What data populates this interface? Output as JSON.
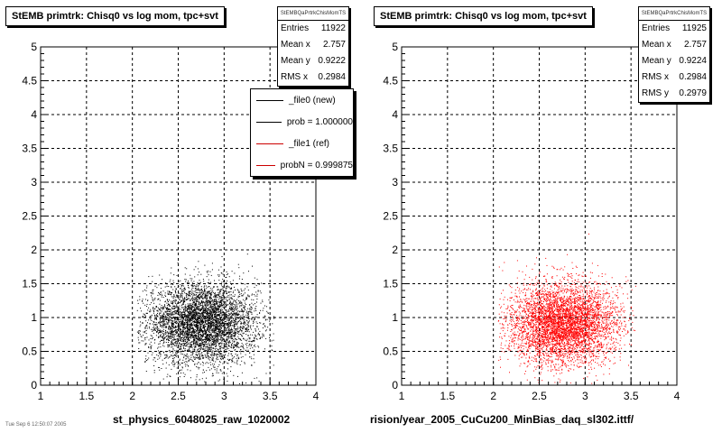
{
  "footnote": "Tue Sep 6 12:50:07 2005",
  "panels": [
    {
      "title": "StEMB primtrk: Chisq0 vs log mom, tpc+svt",
      "stats_name": "StEMBQaPrtrkChisMomTS",
      "stats": [
        {
          "label": "Entries",
          "value": "11922"
        },
        {
          "label": "Mean x",
          "value": "2.757"
        },
        {
          "label": "Mean y",
          "value": "0.9222"
        },
        {
          "label": "RMS x",
          "value": "0.2984"
        }
      ],
      "legend": [
        {
          "label": "_file0 (new)",
          "color": "#000000"
        },
        {
          "label": "prob = 1.000000",
          "color": "#000000"
        },
        {
          "label": "_file1 (ref)",
          "color": "#cc0000"
        },
        {
          "label": "probN = 0.999875",
          "color": "#cc0000"
        }
      ],
      "x_title": "st_physics_6048025_raw_1020002",
      "marker_color": "#000000"
    },
    {
      "title": "StEMB primtrk: Chisq0 vs log mom, tpc+svt",
      "stats_name": "StEMBQaPrtrkChisMomTS",
      "stats": [
        {
          "label": "Entries",
          "value": "11925"
        },
        {
          "label": "Mean x",
          "value": "2.757"
        },
        {
          "label": "Mean y",
          "value": "0.9224"
        },
        {
          "label": "RMS x",
          "value": "0.2984"
        },
        {
          "label": "RMS y",
          "value": "0.2979"
        }
      ],
      "legend": [],
      "x_title": "rision/year_2005_CuCu200_MinBias_daq_sl302.ittf/",
      "marker_color": "#ff0000"
    }
  ],
  "chart_data": [
    {
      "type": "scatter",
      "title": "StEMB primtrk: Chisq0 vs log mom, tpc+svt",
      "xlabel": "st_physics_6048025_raw_1020002",
      "ylabel": "",
      "xlim": [
        1,
        4
      ],
      "ylim": [
        0,
        5
      ],
      "x_ticks": [
        "1",
        "1.5",
        "2",
        "2.5",
        "3",
        "3.5",
        "4"
      ],
      "y_ticks": [
        "0",
        "0.5",
        "1",
        "1.5",
        "2",
        "2.5",
        "3",
        "3.5",
        "4",
        "4.5",
        "5"
      ],
      "grid": true,
      "entries": 11922,
      "mean_x": 2.757,
      "mean_y": 0.9222,
      "rms_x": 0.2984,
      "rms_y": 0.2979,
      "x_range_data": [
        2.05,
        3.55
      ],
      "series": [
        {
          "name": "_file0 (new)",
          "color": "#000000",
          "points_drawn": 5000
        }
      ]
    },
    {
      "type": "scatter",
      "title": "StEMB primtrk: Chisq0 vs log mom, tpc+svt",
      "xlabel": "rision/year_2005_CuCu200_MinBias_daq_sl302.ittf/",
      "ylabel": "",
      "xlim": [
        1,
        4
      ],
      "ylim": [
        0,
        5
      ],
      "x_ticks": [
        "1",
        "1.5",
        "2",
        "2.5",
        "3",
        "3.5",
        "4"
      ],
      "y_ticks": [
        "0",
        "0.5",
        "1",
        "1.5",
        "2",
        "2.5",
        "3",
        "3.5",
        "4",
        "4.5",
        "5"
      ],
      "grid": true,
      "entries": 11925,
      "mean_x": 2.757,
      "mean_y": 0.9224,
      "rms_x": 0.2984,
      "rms_y": 0.2979,
      "x_range_data": [
        2.05,
        3.55
      ],
      "series": [
        {
          "name": "_file1 (ref)",
          "color": "#ff0000",
          "points_drawn": 5000
        }
      ]
    }
  ]
}
